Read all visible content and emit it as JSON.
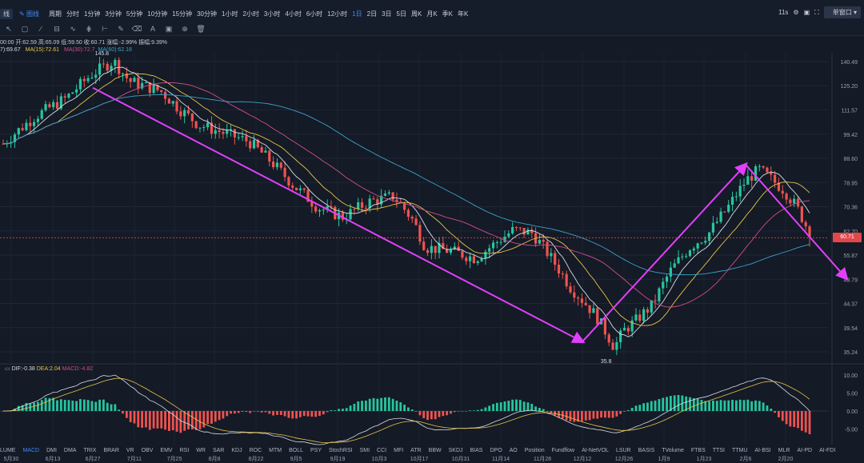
{
  "toolbar": {
    "left_tabs": [
      "线",
      "图线"
    ],
    "period_label": "周期",
    "timeframes": [
      "分时",
      "1分钟",
      "3分钟",
      "5分钟",
      "10分钟",
      "15分钟",
      "30分钟",
      "1小时",
      "2小时",
      "3小时",
      "4小时",
      "6小时",
      "12小时",
      "1日",
      "2日",
      "3日",
      "5日",
      "周K",
      "月K",
      "季K",
      "年K"
    ],
    "active_timeframe": "1日",
    "countdown": "11s",
    "window_button": "单窗口"
  },
  "info": {
    "ohlc": "00:00 开:62.59 高:65.09 低:59.50 收:60.71 涨幅:-2.99% 振幅:9.39%",
    "ma_line": {
      "ma_a": "7):69.67",
      "ma15": "MA(15):72.61",
      "ma30": "MA(30):72.7",
      "ma60": "MA(60):62.18"
    }
  },
  "macd_info": {
    "dif": "DIF:-0.38",
    "dea": "DEA:2.04",
    "macd": "MACD:-4.82"
  },
  "indicators": [
    "LUME",
    "MACD",
    "DMI",
    "DMA",
    "TRIX",
    "BRAR",
    "VR",
    "OBV",
    "EMV",
    "RSI",
    "WR",
    "SAR",
    "KDJ",
    "ROC",
    "MTM",
    "BOLL",
    "PSY",
    "StochRSI",
    "SMI",
    "CCI",
    "MFI",
    "ATR",
    "BBW",
    "SKDJ",
    "BIAS",
    "DPO",
    "AO",
    "Position",
    "Fundflow",
    "AI-NetVOL",
    "LSUR",
    "BASIS",
    "TVolume",
    "FTBS",
    "TTSI",
    "TTMU",
    "AI-BSI",
    "MLR",
    "AI-PD",
    "AI-FDI"
  ],
  "active_indicator": "MACD",
  "dates": [
    "5月30",
    "6月13",
    "6月27",
    "7月11",
    "7月25",
    "8月8",
    "8月22",
    "9月5",
    "9月19",
    "10月3",
    "10月17",
    "10月31",
    "11月14",
    "11月28",
    "12月12",
    "12月26",
    "1月9",
    "1月23",
    "2月6",
    "2月20"
  ],
  "current_price_label": "60.71",
  "colors": {
    "up": "#26c6a0",
    "down": "#ef5350",
    "ma_white": "#d9dde6",
    "ma_yellow": "#e8c547",
    "ma_pink": "#d04d8e",
    "ma_blue": "#3ba3c8",
    "trend": "#e040fb",
    "accent": "#3d8bff"
  },
  "chart_data": {
    "type": "candlestick",
    "price_axis_ticks": [
      140.49,
      125.2,
      111.57,
      99.42,
      88.6,
      78.95,
      70.36,
      62.7,
      55.87,
      49.79,
      44.37,
      39.54,
      35.24
    ],
    "macd_axis_ticks": [
      10.0,
      5.0,
      0.0,
      -5.0
    ],
    "annotations": [
      {
        "label": "145.8",
        "kind": "high"
      },
      {
        "label": "35.8",
        "kind": "low"
      }
    ],
    "trend_lines": [
      {
        "from": {
          "date": "6月27",
          "price": 124
        },
        "to": {
          "date": "12月12",
          "price": 37
        }
      },
      {
        "from": {
          "date": "12月12",
          "price": 37
        },
        "to": {
          "date": "2月6",
          "price": 86
        }
      },
      {
        "from": {
          "date": "2月6",
          "price": 86
        },
        "to": {
          "date": "3月5",
          "price": 50
        }
      }
    ],
    "current_price": 60.71
  }
}
